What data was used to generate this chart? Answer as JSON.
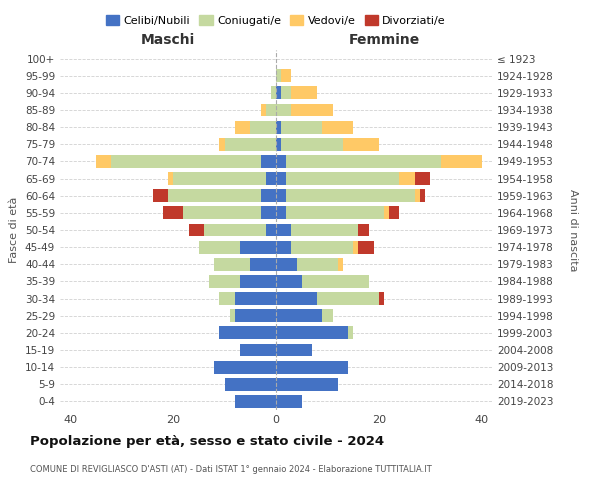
{
  "age_groups": [
    "100+",
    "95-99",
    "90-94",
    "85-89",
    "80-84",
    "75-79",
    "70-74",
    "65-69",
    "60-64",
    "55-59",
    "50-54",
    "45-49",
    "40-44",
    "35-39",
    "30-34",
    "25-29",
    "20-24",
    "15-19",
    "10-14",
    "5-9",
    "0-4"
  ],
  "birth_years": [
    "≤ 1923",
    "1924-1928",
    "1929-1933",
    "1934-1938",
    "1939-1943",
    "1944-1948",
    "1949-1953",
    "1954-1958",
    "1959-1963",
    "1964-1968",
    "1969-1973",
    "1974-1978",
    "1979-1983",
    "1984-1988",
    "1989-1993",
    "1994-1998",
    "1999-2003",
    "2004-2008",
    "2009-2013",
    "2014-2018",
    "2019-2023"
  ],
  "colors": {
    "celibi": "#4472c4",
    "coniugati": "#c5d9a0",
    "vedovi": "#ffc966",
    "divorziati": "#c0392b"
  },
  "maschi": {
    "celibi": [
      0,
      0,
      0,
      0,
      0,
      0,
      3,
      2,
      3,
      3,
      2,
      7,
      5,
      7,
      8,
      8,
      11,
      7,
      12,
      10,
      8
    ],
    "coniugati": [
      0,
      0,
      1,
      2,
      5,
      10,
      29,
      18,
      18,
      15,
      12,
      8,
      7,
      6,
      3,
      1,
      0,
      0,
      0,
      0,
      0
    ],
    "vedovi": [
      0,
      0,
      0,
      1,
      3,
      1,
      3,
      1,
      0,
      0,
      0,
      0,
      0,
      0,
      0,
      0,
      0,
      0,
      0,
      0,
      0
    ],
    "divorziati": [
      0,
      0,
      0,
      0,
      0,
      0,
      0,
      0,
      3,
      4,
      3,
      0,
      0,
      0,
      0,
      0,
      0,
      0,
      0,
      0,
      0
    ]
  },
  "femmine": {
    "celibi": [
      0,
      0,
      1,
      0,
      1,
      1,
      2,
      2,
      2,
      2,
      3,
      3,
      4,
      5,
      8,
      9,
      14,
      7,
      14,
      12,
      5
    ],
    "coniugati": [
      0,
      1,
      2,
      3,
      8,
      12,
      30,
      22,
      25,
      19,
      13,
      12,
      8,
      13,
      12,
      2,
      1,
      0,
      0,
      0,
      0
    ],
    "vedovi": [
      0,
      2,
      5,
      8,
      6,
      7,
      8,
      3,
      1,
      1,
      0,
      1,
      1,
      0,
      0,
      0,
      0,
      0,
      0,
      0,
      0
    ],
    "divorziati": [
      0,
      0,
      0,
      0,
      0,
      0,
      0,
      3,
      1,
      2,
      2,
      3,
      0,
      0,
      1,
      0,
      0,
      0,
      0,
      0,
      0
    ]
  },
  "title": "Popolazione per età, sesso e stato civile - 2024",
  "subtitle": "COMUNE DI REVIGLIASCO D'ASTI (AT) - Dati ISTAT 1° gennaio 2024 - Elaborazione TUTTITALIA.IT",
  "xlabel_left": "Maschi",
  "xlabel_right": "Femmine",
  "ylabel_left": "Fasce di età",
  "ylabel_right": "Anni di nascita",
  "xlim": 42,
  "bg_color": "#ffffff",
  "grid_color": "#cccccc",
  "legend_labels": [
    "Celibi/Nubili",
    "Coniugati/e",
    "Vedovi/e",
    "Divorziati/e"
  ]
}
